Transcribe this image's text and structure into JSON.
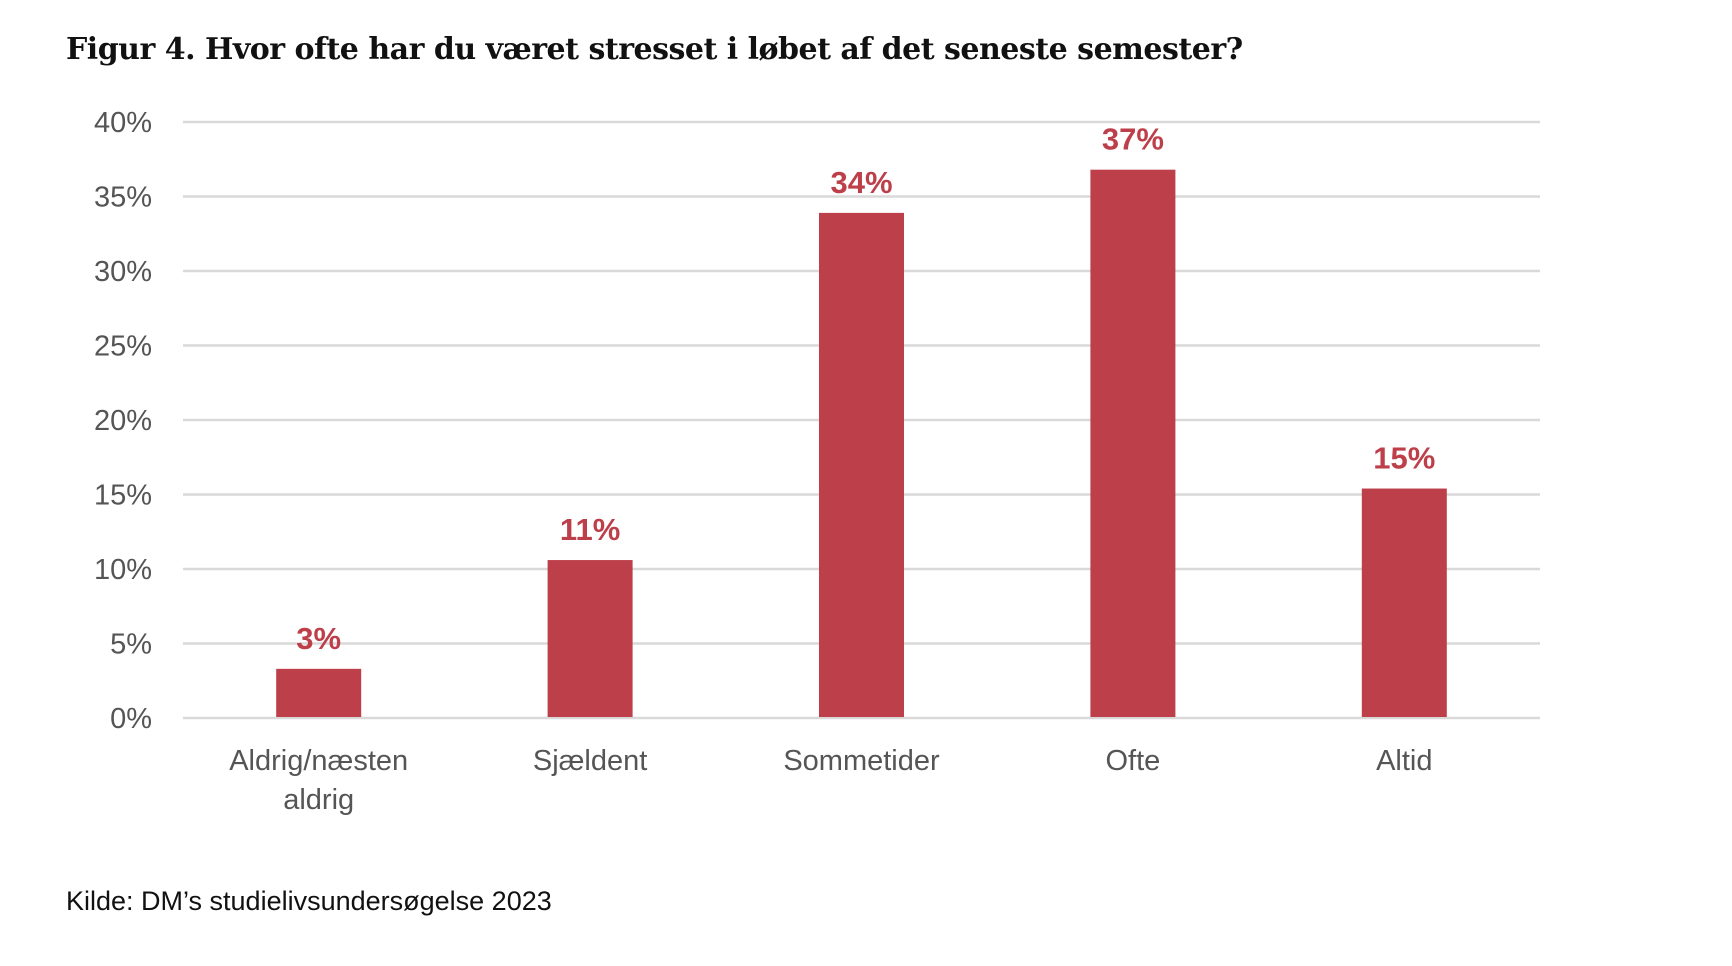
{
  "chart_data": {
    "type": "bar",
    "title": "Figur 4. Hvor ofte har du været stresset i løbet af det seneste semester?",
    "categories": [
      [
        "Aldrig/næsten",
        "aldrig"
      ],
      [
        "Sjældent"
      ],
      [
        "Sommetider"
      ],
      [
        "Ofte"
      ],
      [
        "Altid"
      ]
    ],
    "values": [
      3.3,
      10.6,
      33.9,
      36.8,
      15.4
    ],
    "data_labels": [
      "3%",
      "11%",
      "34%",
      "37%",
      "15%"
    ],
    "ylim": [
      0,
      40
    ],
    "yticks": [
      0,
      5,
      10,
      15,
      20,
      25,
      30,
      35,
      40
    ],
    "ytick_labels": [
      "0%",
      "5%",
      "10%",
      "15%",
      "20%",
      "25%",
      "30%",
      "35%",
      "40%"
    ],
    "xlabel": "",
    "ylabel": "",
    "grid": true,
    "colors": {
      "bar": "#bd3f4a",
      "label": "#bd3f4a",
      "grid": "#d9d9d9",
      "tick": "#555555"
    }
  },
  "source": "Kilde: DM’s studielivsundersøgelse 2023"
}
